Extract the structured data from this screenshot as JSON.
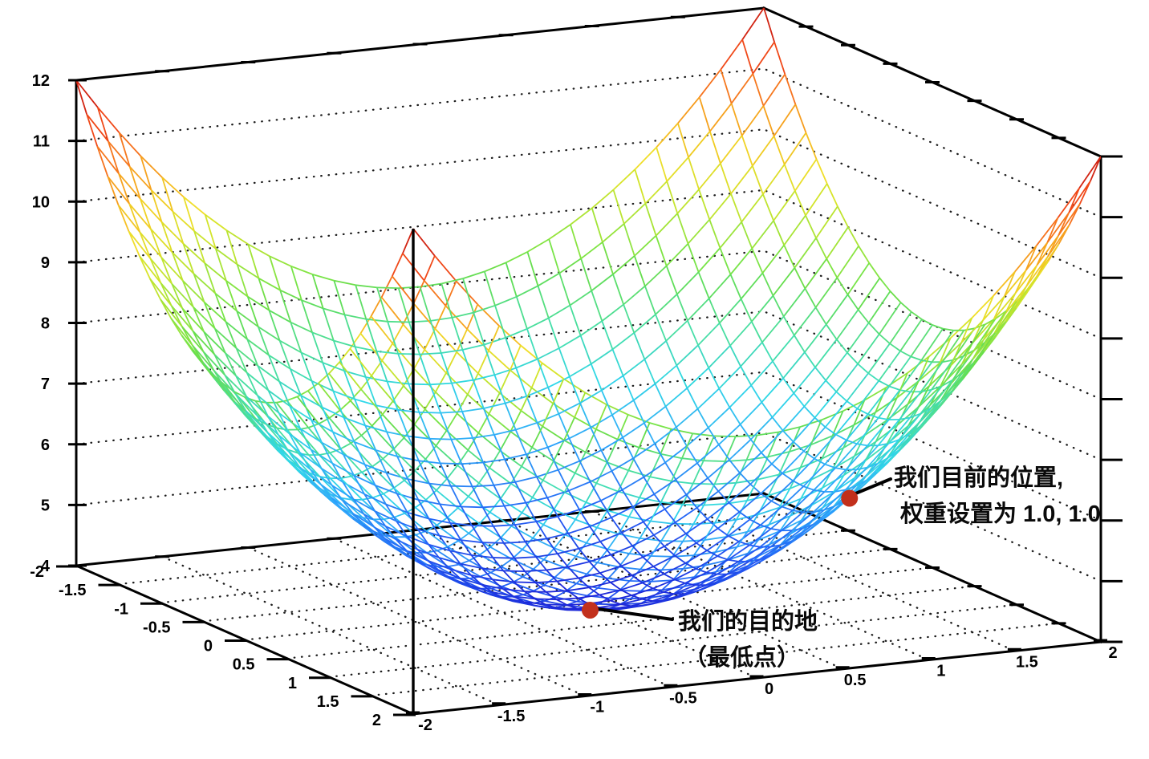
{
  "figure": {
    "background": "#ffffff",
    "description": "3D wireframe bowl surface illustrating gradient descent"
  },
  "chart_data": {
    "type": "surface",
    "surface": {
      "formula": "z = x^2 + y^2 + 4",
      "x_range": [
        -2,
        2
      ],
      "y_range": [
        -2,
        2
      ],
      "z_range": [
        4,
        12
      ],
      "mesh_step": 0.125
    },
    "axes": {
      "bottom_left_axis": {
        "tick_values": [
          -2,
          -1.5,
          -1,
          -0.5,
          0,
          0.5,
          1,
          1.5,
          2
        ],
        "tick_labels": [
          "-2",
          "-1.5",
          "-1",
          "-0.5",
          "0",
          "0.5",
          "1",
          "1.5",
          "2"
        ]
      },
      "bottom_right_axis": {
        "tick_values": [
          -2,
          -1.5,
          -1,
          -0.5,
          0,
          0.5,
          1,
          1.5,
          2
        ],
        "tick_labels": [
          "-2",
          "-1.5",
          "-1",
          "-0.5",
          "0",
          "0.5",
          "1",
          "1.5",
          "2"
        ]
      },
      "z_axis": {
        "tick_values": [
          4,
          5,
          6,
          7,
          8,
          9,
          10,
          11,
          12
        ],
        "tick_labels": [
          "4",
          "5",
          "6",
          "7",
          "8",
          "9",
          "10",
          "11",
          "12"
        ],
        "labels_side": "left"
      }
    },
    "grid": {
      "style": "dotted",
      "wall_z_levels": [
        5,
        6,
        7,
        8,
        9,
        10,
        11
      ],
      "floor_tick_step": 0.5,
      "color": "#1c1c1c"
    },
    "colormap": {
      "name": "rainbow-jet",
      "stops": [
        [
          0.0,
          "#1c25d7"
        ],
        [
          0.1,
          "#235cf3"
        ],
        [
          0.22,
          "#2da5fa"
        ],
        [
          0.32,
          "#2fd5e8"
        ],
        [
          0.42,
          "#48dea0"
        ],
        [
          0.52,
          "#69e04c"
        ],
        [
          0.63,
          "#bae630"
        ],
        [
          0.72,
          "#f0de28"
        ],
        [
          0.82,
          "#f8921e"
        ],
        [
          0.91,
          "#ee4618"
        ],
        [
          1.0,
          "#c41210"
        ]
      ]
    },
    "marked_points": [
      {
        "id": "current-position",
        "x": 1.0,
        "y": 1.0,
        "z": 6.0,
        "label_lines": [
          "我们目前的位置,",
          "权重设置为 1.0, 1.0"
        ]
      },
      {
        "id": "destination",
        "x": 0.0,
        "y": 0.0,
        "z": 4.0,
        "label_lines": [
          "我们的目的地",
          "（最低点）"
        ]
      }
    ],
    "point_color": "#c2301c",
    "axis_color": "#000000",
    "annotation_text_color": "#0a0a0a",
    "annotation_font_px": 29,
    "tick_font_px": 20
  }
}
